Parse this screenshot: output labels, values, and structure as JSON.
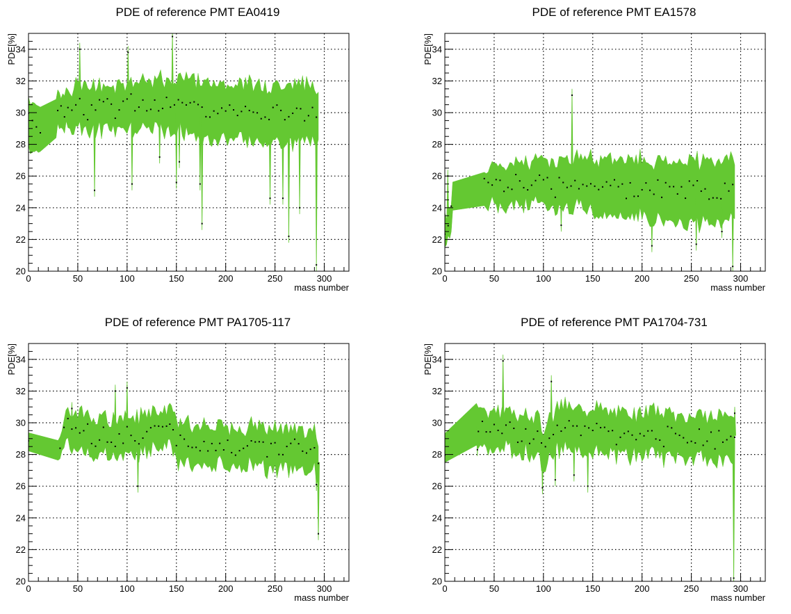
{
  "colors": {
    "band": "#64c832",
    "point": "#000000",
    "grid": "#000000",
    "frame": "#000000"
  },
  "chart_data": [
    {
      "type": "area",
      "title": "PDE of reference PMT EA0419",
      "xlabel": "mass number",
      "ylabel": "PDE[%]",
      "xlim": [
        0,
        325
      ],
      "ylim": [
        20,
        35
      ],
      "xticks": [
        0,
        50,
        100,
        150,
        200,
        250,
        300
      ],
      "yticks": [
        20,
        22,
        24,
        26,
        28,
        30,
        32,
        34
      ],
      "grid": true,
      "legend": "none",
      "x": [
        0,
        12,
        28,
        33,
        40,
        50,
        60,
        70,
        80,
        90,
        100,
        110,
        120,
        130,
        140,
        150,
        160,
        170,
        180,
        190,
        200,
        210,
        220,
        230,
        240,
        250,
        260,
        270,
        280,
        290,
        294
      ],
      "y": [
        29.3,
        29.0,
        30.3,
        30.0,
        30.2,
        30.4,
        30.0,
        30.3,
        30.5,
        30.2,
        30.6,
        30.4,
        30.5,
        30.6,
        30.3,
        30.6,
        30.4,
        30.3,
        30.1,
        30.0,
        30.1,
        30.0,
        30.2,
        29.9,
        30.0,
        30.1,
        29.8,
        29.9,
        30.0,
        30.2,
        29.8
      ],
      "lo": [
        28.0,
        27.7,
        29.3,
        29.0,
        29.3,
        29.2,
        28.8,
        29.2,
        29.4,
        29.0,
        29.4,
        29.2,
        29.3,
        29.3,
        28.9,
        29.2,
        28.9,
        28.7,
        28.5,
        28.4,
        28.6,
        28.5,
        28.7,
        28.3,
        28.4,
        28.6,
        28.1,
        28.3,
        28.5,
        28.7,
        28.3
      ],
      "hi": [
        30.6,
        30.2,
        31.2,
        30.7,
        31.1,
        31.5,
        31.2,
        31.4,
        31.6,
        31.4,
        31.8,
        31.6,
        31.7,
        31.9,
        31.7,
        32.0,
        32.0,
        31.9,
        31.7,
        31.6,
        31.6,
        31.5,
        31.7,
        31.5,
        31.6,
        31.6,
        31.5,
        31.5,
        31.5,
        31.7,
        31.3
      ],
      "outliers": [
        [
          52,
          34.0
        ],
        [
          67,
          25.1
        ],
        [
          101,
          33.8
        ],
        [
          105,
          25.5
        ],
        [
          133,
          27.2
        ],
        [
          146,
          34.8
        ],
        [
          150,
          25.6
        ],
        [
          153,
          26.9
        ],
        [
          176,
          23.0
        ],
        [
          174,
          25.5
        ],
        [
          245,
          24.6
        ],
        [
          258,
          24.6
        ],
        [
          264,
          22.2
        ],
        [
          275,
          24.0
        ],
        [
          292,
          20.4
        ]
      ]
    },
    {
      "type": "area",
      "title": "PDE of reference PMT EA1578",
      "xlabel": "mass number",
      "ylabel": "PDE[%]",
      "xlim": [
        0,
        325
      ],
      "ylim": [
        20,
        35
      ],
      "xticks": [
        0,
        50,
        100,
        150,
        200,
        250,
        300
      ],
      "yticks": [
        20,
        22,
        24,
        26,
        28,
        30,
        32,
        34
      ],
      "grid": true,
      "legend": "none",
      "x": [
        0,
        5,
        8,
        40,
        50,
        60,
        70,
        80,
        90,
        100,
        110,
        120,
        130,
        140,
        150,
        160,
        170,
        180,
        190,
        200,
        210,
        220,
        230,
        240,
        250,
        260,
        270,
        280,
        290,
        294
      ],
      "y": [
        23.0,
        22.8,
        25.1,
        25.6,
        25.5,
        25.3,
        25.6,
        25.5,
        25.7,
        25.8,
        25.3,
        25.4,
        25.6,
        25.7,
        25.2,
        25.3,
        25.1,
        25.4,
        25.2,
        25.3,
        25.0,
        25.1,
        25.2,
        24.9,
        25.1,
        25.0,
        24.8,
        25.0,
        25.2,
        25.0
      ],
      "lo": [
        22.3,
        22.0,
        24.2,
        24.7,
        24.4,
        24.1,
        24.5,
        24.3,
        24.6,
        24.6,
        24.0,
        24.1,
        24.3,
        24.4,
        23.7,
        23.8,
        23.5,
        23.8,
        23.6,
        23.7,
        23.4,
        23.4,
        23.6,
        23.2,
        23.4,
        23.3,
        23.1,
        23.3,
        23.5,
        23.3
      ],
      "hi": [
        23.7,
        23.6,
        25.2,
        26.3,
        26.5,
        26.4,
        26.6,
        26.6,
        26.7,
        27.0,
        26.6,
        26.7,
        26.9,
        27.0,
        26.7,
        26.8,
        26.7,
        27.0,
        26.8,
        26.9,
        26.6,
        26.8,
        26.8,
        26.6,
        26.8,
        26.7,
        26.5,
        26.7,
        26.9,
        26.7
      ],
      "outliers": [
        [
          3,
          26.0
        ],
        [
          129,
          31.1
        ],
        [
          118,
          22.9
        ],
        [
          210,
          21.6
        ],
        [
          255,
          21.7
        ],
        [
          281,
          22.5
        ],
        [
          292,
          20.3
        ]
      ]
    },
    {
      "type": "area",
      "title": "PDE of reference PMT PA1705-117",
      "xlabel": "mass number",
      "ylabel": "PDE[%]",
      "xlim": [
        0,
        325
      ],
      "ylim": [
        20,
        35
      ],
      "xticks": [
        0,
        50,
        100,
        150,
        200,
        250,
        300
      ],
      "yticks": [
        20,
        22,
        24,
        26,
        28,
        30,
        32,
        34
      ],
      "grid": true,
      "legend": "none",
      "x": [
        0,
        30,
        40,
        50,
        60,
        70,
        80,
        90,
        100,
        110,
        120,
        130,
        140,
        145,
        150,
        160,
        170,
        180,
        190,
        200,
        210,
        220,
        230,
        240,
        250,
        260,
        270,
        280,
        290,
        294
      ],
      "y": [
        28.7,
        28.4,
        29.7,
        29.6,
        29.4,
        29.0,
        29.3,
        29.0,
        29.2,
        29.3,
        29.5,
        29.6,
        29.8,
        29.5,
        28.9,
        28.6,
        28.8,
        28.7,
        28.5,
        28.6,
        28.4,
        28.5,
        28.6,
        28.3,
        28.2,
        28.4,
        28.3,
        28.1,
        28.3,
        27.5
      ],
      "lo": [
        28.4,
        28.1,
        28.8,
        28.7,
        28.4,
        28.0,
        28.3,
        28.0,
        28.2,
        28.3,
        28.5,
        28.6,
        28.9,
        28.6,
        27.9,
        27.6,
        27.8,
        27.7,
        27.5,
        27.6,
        27.4,
        27.5,
        27.6,
        27.3,
        27.2,
        27.4,
        27.3,
        27.1,
        27.3,
        26.5
      ],
      "hi": [
        29.0,
        28.7,
        30.5,
        30.5,
        30.3,
        29.9,
        30.2,
        29.9,
        30.1,
        30.2,
        30.4,
        30.5,
        30.7,
        30.4,
        29.9,
        29.6,
        29.8,
        29.7,
        29.5,
        29.6,
        29.4,
        29.5,
        29.6,
        29.3,
        29.2,
        29.4,
        29.3,
        29.1,
        29.3,
        28.5
      ],
      "outliers": [
        [
          44,
          30.9
        ],
        [
          100,
          32.2
        ],
        [
          111,
          26.0
        ],
        [
          88,
          32.0
        ],
        [
          292,
          26.1
        ],
        [
          294,
          23.0
        ]
      ]
    },
    {
      "type": "area",
      "title": "PDE of reference PMT PA1704-731",
      "xlabel": "mass number",
      "ylabel": "PDE[%]",
      "xlim": [
        0,
        325
      ],
      "ylim": [
        20,
        35
      ],
      "xticks": [
        0,
        50,
        100,
        150,
        200,
        250,
        300
      ],
      "yticks": [
        20,
        22,
        24,
        26,
        28,
        30,
        32,
        34
      ],
      "grid": true,
      "legend": "none",
      "x": [
        0,
        32,
        40,
        50,
        60,
        70,
        80,
        90,
        100,
        110,
        120,
        130,
        140,
        150,
        160,
        170,
        180,
        190,
        200,
        210,
        220,
        230,
        240,
        250,
        260,
        270,
        280,
        290,
        294
      ],
      "y": [
        28.4,
        30.2,
        29.8,
        29.4,
        29.6,
        29.3,
        29.5,
        29.2,
        28.6,
        29.4,
        29.8,
        29.5,
        29.6,
        29.7,
        29.4,
        29.5,
        29.2,
        29.4,
        29.3,
        29.4,
        29.2,
        29.3,
        29.1,
        29.2,
        29.0,
        29.1,
        28.9,
        29.0,
        29.2
      ],
      "lo": [
        27.8,
        29.2,
        28.9,
        28.4,
        28.6,
        28.3,
        28.5,
        28.2,
        27.6,
        28.4,
        28.7,
        28.4,
        28.5,
        28.6,
        28.3,
        28.4,
        28.1,
        28.3,
        28.2,
        28.3,
        28.1,
        28.2,
        28.0,
        28.1,
        27.9,
        28.0,
        27.8,
        27.9,
        28.1
      ],
      "hi": [
        29.0,
        31.2,
        30.7,
        30.4,
        30.6,
        30.3,
        30.5,
        30.2,
        29.6,
        30.4,
        30.9,
        30.6,
        30.7,
        30.8,
        30.5,
        30.6,
        30.3,
        30.5,
        30.4,
        30.5,
        30.3,
        30.4,
        30.2,
        30.3,
        30.1,
        30.2,
        30.0,
        30.1,
        30.3
      ],
      "outliers": [
        [
          59,
          33.9
        ],
        [
          108,
          32.6
        ],
        [
          99,
          25.9
        ],
        [
          112,
          26.4
        ],
        [
          131,
          26.7
        ],
        [
          145,
          26.0
        ],
        [
          33,
          28.3
        ],
        [
          294,
          30.6
        ],
        [
          293,
          20.2
        ]
      ]
    }
  ]
}
